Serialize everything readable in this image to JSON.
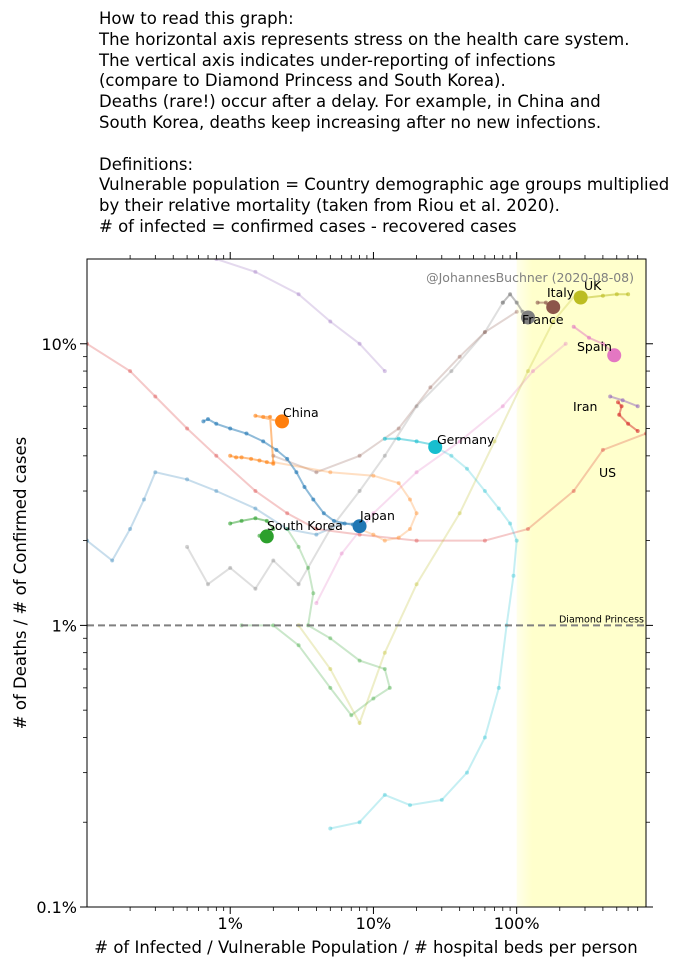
{
  "intro": {
    "lines": [
      "How to read this graph:",
      "The horizontal axis represents stress on the health care system.",
      "The vertical axis indicates under-reporting of infections",
      "(compare to Diamond Princess and South Korea).",
      "Deaths (rare!) occur after a delay. For example, in China and",
      "South Korea, deaths keep increasing after no new infections.",
      "",
      "Definitions:",
      "Vulnerable population = Country demographic age groups multiplied",
      "by their relative mortality (taken from Riou et al. 2020).",
      "# of infected = confirmed cases - recovered cases"
    ]
  },
  "chart_data": {
    "type": "scatter",
    "title": "",
    "xlabel": "# of Infected / Vulnerable Population / # hospital beds per person",
    "ylabel": "# of Deaths / # of Confirmed cases",
    "xscale": "log",
    "yscale": "log",
    "xlim": [
      0.1,
      800
    ],
    "ylim": [
      0.1,
      20
    ],
    "xticks": [
      {
        "value": 1,
        "label": "1%"
      },
      {
        "value": 10,
        "label": "10%"
      },
      {
        "value": 100,
        "label": "100%"
      }
    ],
    "yticks": [
      {
        "value": 0.1,
        "label": "0.1%"
      },
      {
        "value": 1,
        "label": "1%"
      },
      {
        "value": 10,
        "label": "10%"
      }
    ],
    "watermark": "@JohannesBuchner (2020-08-08)",
    "reference_line": {
      "y": 1,
      "label": "Diamond Princess",
      "color": "#808080"
    },
    "highlight_region": {
      "x_from": 100,
      "x_to": 800,
      "color": "#ffffcc"
    },
    "series": [
      {
        "name": "",
        "color": "#9467bd",
        "faded": true,
        "points": [
          [
            0.8,
            20
          ],
          [
            1.5,
            18
          ],
          [
            3,
            15
          ],
          [
            5,
            12
          ],
          [
            8,
            10
          ],
          [
            12,
            8
          ]
        ]
      },
      {
        "name": "",
        "color": "#d62728",
        "faded": true,
        "points": [
          [
            0.1,
            10
          ],
          [
            0.2,
            8
          ],
          [
            0.3,
            6.5
          ],
          [
            0.5,
            5
          ],
          [
            0.8,
            4
          ],
          [
            1.5,
            3
          ],
          [
            2.5,
            2.5
          ],
          [
            4,
            2.2
          ],
          [
            8,
            2.1
          ],
          [
            20,
            2.0
          ],
          [
            60,
            2.0
          ],
          [
            120,
            2.2
          ],
          [
            250,
            3
          ],
          [
            400,
            4.2
          ],
          [
            800,
            4.8
          ]
        ]
      },
      {
        "name": "",
        "color": "#1f77b4",
        "faded": true,
        "points": [
          [
            0.1,
            2
          ],
          [
            0.15,
            1.7
          ],
          [
            0.2,
            2.2
          ],
          [
            0.25,
            2.8
          ],
          [
            0.3,
            3.5
          ],
          [
            0.5,
            3.3
          ],
          [
            0.8,
            3
          ],
          [
            1.5,
            2.6
          ],
          [
            2.5,
            2.2
          ],
          [
            4,
            2.1
          ],
          [
            6,
            2.3
          ],
          [
            8,
            2.3
          ]
        ]
      },
      {
        "name": "",
        "color": "#7f7f7f",
        "faded": true,
        "points": [
          [
            0.5,
            1.9
          ],
          [
            0.7,
            1.4
          ],
          [
            1,
            1.6
          ],
          [
            1.5,
            1.35
          ],
          [
            2,
            1.7
          ],
          [
            3,
            1.4
          ],
          [
            5,
            2.2
          ],
          [
            8,
            3
          ],
          [
            12,
            4
          ],
          [
            20,
            6
          ],
          [
            35,
            8
          ],
          [
            60,
            11
          ],
          [
            80,
            14
          ]
        ]
      },
      {
        "name": "",
        "color": "#bcbd22",
        "faded": true,
        "points": [
          [
            3,
            1
          ],
          [
            5,
            0.7
          ],
          [
            8,
            0.45
          ],
          [
            12,
            0.8
          ],
          [
            20,
            1.4
          ],
          [
            40,
            2.5
          ],
          [
            70,
            4.5
          ],
          [
            120,
            8
          ],
          [
            180,
            12
          ],
          [
            260,
            15
          ]
        ]
      },
      {
        "name": "",
        "color": "#e377c2",
        "faded": true,
        "points": [
          [
            4,
            1.2
          ],
          [
            6,
            1.8
          ],
          [
            10,
            2.5
          ],
          [
            20,
            3.5
          ],
          [
            40,
            4.5
          ],
          [
            80,
            6
          ],
          [
            130,
            8
          ],
          [
            220,
            10
          ]
        ]
      },
      {
        "name": "",
        "color": "#8c564b",
        "faded": true,
        "points": [
          [
            2,
            4
          ],
          [
            4,
            3.5
          ],
          [
            8,
            4
          ],
          [
            15,
            5
          ],
          [
            25,
            7
          ],
          [
            40,
            9
          ],
          [
            60,
            11
          ],
          [
            100,
            13
          ]
        ]
      },
      {
        "name": "Japan",
        "color": "#1f77b4",
        "points": [
          [
            0.65,
            5.3
          ],
          [
            0.7,
            5.4
          ],
          [
            0.8,
            5.2
          ],
          [
            1.0,
            5.0
          ],
          [
            1.3,
            4.8
          ],
          [
            1.7,
            4.5
          ],
          [
            2.1,
            4.2
          ],
          [
            2.5,
            3.9
          ],
          [
            2.9,
            3.5
          ],
          [
            3.3,
            3.1
          ],
          [
            3.8,
            2.8
          ],
          [
            4.5,
            2.5
          ],
          [
            5.3,
            2.35
          ],
          [
            6.3,
            2.3
          ],
          [
            7.2,
            2.28
          ],
          [
            8.0,
            2.25
          ]
        ]
      },
      {
        "name": "China",
        "color": "#ff7f0e",
        "points": [
          [
            1.0,
            4.0
          ],
          [
            1.1,
            3.95
          ],
          [
            1.2,
            3.95
          ],
          [
            1.4,
            3.9
          ],
          [
            1.6,
            3.85
          ],
          [
            1.8,
            3.8
          ],
          [
            2.0,
            3.75
          ],
          [
            1.9,
            5.5
          ],
          [
            1.7,
            5.5
          ],
          [
            1.5,
            5.55
          ],
          [
            2.2,
            5.3
          ],
          [
            2.3,
            5.3
          ]
        ]
      },
      {
        "name": "",
        "color": "#ff7f0e",
        "faded": true,
        "points": [
          [
            2,
            3.8
          ],
          [
            5,
            3.5
          ],
          [
            10,
            3.4
          ],
          [
            15,
            3.2
          ],
          [
            18,
            2.8
          ],
          [
            20,
            2.5
          ],
          [
            18,
            2.2
          ],
          [
            15,
            2.05
          ],
          [
            12,
            2.0
          ],
          [
            10,
            2.1
          ],
          [
            8,
            2.2
          ]
        ]
      },
      {
        "name": "South Korea",
        "color": "#2ca02c",
        "points": [
          [
            1.0,
            2.3
          ],
          [
            1.2,
            2.35
          ],
          [
            1.5,
            2.4
          ],
          [
            1.8,
            2.35
          ],
          [
            2.0,
            2.2
          ],
          [
            1.8,
            2.1
          ],
          [
            1.6,
            2.08
          ],
          [
            1.8,
            2.07
          ]
        ]
      },
      {
        "name": "",
        "color": "#2ca02c",
        "faded": true,
        "points": [
          [
            2.5,
            2.2
          ],
          [
            3.0,
            1.9
          ],
          [
            3.5,
            1.6
          ],
          [
            3.8,
            1.3
          ],
          [
            3.5,
            1.0
          ],
          [
            5,
            0.9
          ],
          [
            8,
            0.75
          ],
          [
            12,
            0.7
          ],
          [
            13,
            0.6
          ],
          [
            10,
            0.55
          ],
          [
            7,
            0.48
          ],
          [
            5,
            0.6
          ],
          [
            3,
            0.85
          ],
          [
            2,
            1.0
          ],
          [
            1.2,
            1.0
          ]
        ]
      },
      {
        "name": "Germany",
        "color": "#17becf",
        "points": [
          [
            12,
            4.6
          ],
          [
            15,
            4.6
          ],
          [
            20,
            4.5
          ],
          [
            25,
            4.4
          ],
          [
            27,
            4.3
          ]
        ]
      },
      {
        "name": "",
        "color": "#17becf",
        "faded": true,
        "points": [
          [
            27,
            4.3
          ],
          [
            35,
            4.0
          ],
          [
            45,
            3.6
          ],
          [
            60,
            3.0
          ],
          [
            75,
            2.6
          ],
          [
            90,
            2.3
          ],
          [
            100,
            2.0
          ],
          [
            95,
            1.5
          ],
          [
            85,
            1.0
          ],
          [
            75,
            0.6
          ],
          [
            60,
            0.4
          ],
          [
            45,
            0.3
          ],
          [
            30,
            0.24
          ],
          [
            18,
            0.23
          ],
          [
            12,
            0.25
          ],
          [
            8,
            0.2
          ],
          [
            5,
            0.19
          ]
        ]
      },
      {
        "name": "Italy",
        "color": "#8c564b",
        "points": [
          [
            140,
            14
          ],
          [
            160,
            14
          ],
          [
            180,
            13
          ]
        ]
      },
      {
        "name": "UK",
        "color": "#bcbd22",
        "points": [
          [
            280,
            14.5
          ],
          [
            400,
            14.8
          ],
          [
            500,
            15
          ],
          [
            600,
            15
          ]
        ]
      },
      {
        "name": "France",
        "color": "#7f7f7f",
        "points": [
          [
            80,
            14
          ],
          [
            90,
            15
          ],
          [
            100,
            14
          ],
          [
            110,
            13
          ]
        ]
      },
      {
        "name": "Spain",
        "color": "#e377c2",
        "points": [
          [
            250,
            11.5
          ],
          [
            320,
            10.5
          ],
          [
            400,
            10
          ],
          [
            480,
            9.2
          ]
        ]
      },
      {
        "name": "Iran",
        "color": "#9467bd",
        "points": [
          [
            450,
            6.5
          ],
          [
            550,
            6.3
          ],
          [
            700,
            6.0
          ]
        ]
      },
      {
        "name": "US",
        "color": "#d62728",
        "points": [
          [
            510,
            6.2
          ],
          [
            540,
            6.0
          ],
          [
            520,
            5.6
          ],
          [
            600,
            5.2
          ],
          [
            700,
            4.9
          ]
        ]
      }
    ],
    "labeled_points": [
      {
        "name": "China",
        "x": 2.3,
        "y": 5.3,
        "color": "#ff7f0e"
      },
      {
        "name": "Japan",
        "x": 8.0,
        "y": 2.25,
        "color": "#1f77b4"
      },
      {
        "name": "South Korea",
        "x": 1.8,
        "y": 2.07,
        "color": "#2ca02c"
      },
      {
        "name": "Germany",
        "x": 27,
        "y": 4.3,
        "color": "#17becf"
      },
      {
        "name": "Italy",
        "x": 180,
        "y": 13.5,
        "color": "#8c564b"
      },
      {
        "name": "UK",
        "x": 280,
        "y": 14.6,
        "color": "#bcbd22"
      },
      {
        "name": "France",
        "x": 120,
        "y": 12.4,
        "color": "#7f7f7f"
      },
      {
        "name": "Spain",
        "x": 480,
        "y": 9.1,
        "color": "#e377c2"
      },
      {
        "name": "Iran",
        "x": 0,
        "y": 0,
        "color": "",
        "label_only": true
      },
      {
        "name": "US",
        "x": 0,
        "y": 0,
        "color": "",
        "label_only": true
      }
    ]
  }
}
